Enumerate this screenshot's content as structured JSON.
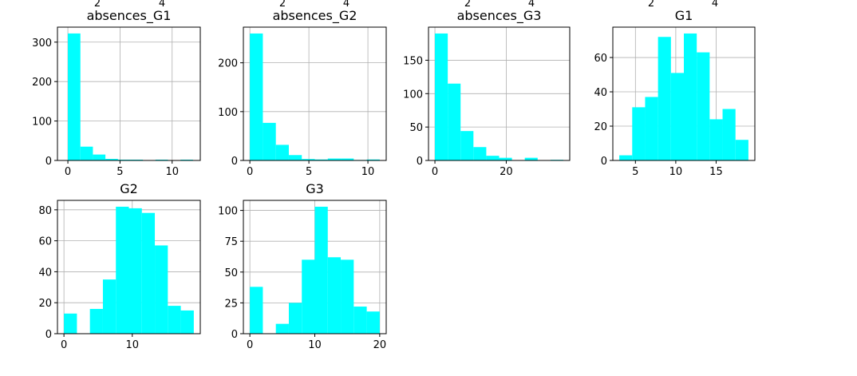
{
  "colors": {
    "bar": "#00ffff",
    "grid": "#b0b0b0",
    "axis": "#000000"
  },
  "top_clipped_ticks": [
    "2",
    "4",
    "2",
    "4",
    "2",
    "4",
    "2",
    "4"
  ],
  "chart_data": [
    {
      "id": "absences_G1",
      "type": "bar",
      "title": "absences_G1",
      "bins": [
        [
          0,
          1.2,
          322
        ],
        [
          1.2,
          2.4,
          35
        ],
        [
          2.4,
          3.6,
          15
        ],
        [
          3.6,
          4.8,
          4
        ],
        [
          4.8,
          6,
          2
        ],
        [
          6,
          7.2,
          2
        ],
        [
          7.2,
          8.4,
          0
        ],
        [
          8.4,
          9.6,
          2
        ],
        [
          9.6,
          10.8,
          1
        ],
        [
          10.8,
          12,
          2
        ]
      ],
      "xlim": [
        -1,
        12.7
      ],
      "ylim": [
        0,
        338
      ],
      "xticks": [
        0,
        5,
        10
      ],
      "yticks": [
        0,
        100,
        200,
        300
      ],
      "grid": true
    },
    {
      "id": "absences_G2",
      "type": "bar",
      "title": "absences_G2",
      "bins": [
        [
          0,
          1.1,
          260
        ],
        [
          1.1,
          2.2,
          77
        ],
        [
          2.2,
          3.3,
          32
        ],
        [
          3.3,
          4.4,
          11
        ],
        [
          4.4,
          5.5,
          3
        ],
        [
          5.5,
          6.6,
          2
        ],
        [
          6.6,
          7.7,
          4
        ],
        [
          7.7,
          8.8,
          4
        ],
        [
          8.8,
          9.9,
          1
        ],
        [
          9.9,
          11,
          2
        ]
      ],
      "xlim": [
        -0.55,
        11.55
      ],
      "ylim": [
        0,
        273
      ],
      "xticks": [
        0,
        5,
        10
      ],
      "yticks": [
        0,
        100,
        200
      ],
      "grid": true
    },
    {
      "id": "absences_G3",
      "type": "bar",
      "title": "absences_G3",
      "bins": [
        [
          0,
          3.6,
          190
        ],
        [
          3.6,
          7.2,
          115
        ],
        [
          7.2,
          10.8,
          44
        ],
        [
          10.8,
          14.4,
          20
        ],
        [
          14.4,
          18,
          7
        ],
        [
          18,
          21.6,
          4
        ],
        [
          21.6,
          25.2,
          0
        ],
        [
          25.2,
          28.8,
          4
        ],
        [
          28.8,
          32.4,
          0
        ],
        [
          32.4,
          36,
          1
        ]
      ],
      "xlim": [
        -1.8,
        37.8
      ],
      "ylim": [
        0,
        199.5
      ],
      "xticks": [
        0,
        20
      ],
      "yticks": [
        0,
        50,
        100,
        150
      ],
      "grid": true
    },
    {
      "id": "G1",
      "type": "bar",
      "title": "G1",
      "bins": [
        [
          3,
          4.6,
          3
        ],
        [
          4.6,
          6.2,
          31
        ],
        [
          6.2,
          7.8,
          37
        ],
        [
          7.8,
          9.4,
          72
        ],
        [
          9.4,
          11,
          51
        ],
        [
          11,
          12.6,
          74
        ],
        [
          12.6,
          14.2,
          63
        ],
        [
          14.2,
          15.8,
          24
        ],
        [
          15.8,
          17.4,
          30
        ],
        [
          17.4,
          19,
          12
        ]
      ],
      "xlim": [
        2.2,
        19.8
      ],
      "ylim": [
        0,
        77.7
      ],
      "xticks": [
        5,
        10,
        15
      ],
      "yticks": [
        0,
        20,
        40,
        60
      ],
      "grid": true
    },
    {
      "id": "G2",
      "type": "bar",
      "title": "G2",
      "bins": [
        [
          0,
          1.9,
          13
        ],
        [
          1.9,
          3.8,
          0
        ],
        [
          3.8,
          5.7,
          16
        ],
        [
          5.7,
          7.6,
          35
        ],
        [
          7.6,
          9.5,
          82
        ],
        [
          9.5,
          11.4,
          81
        ],
        [
          11.4,
          13.3,
          78
        ],
        [
          13.3,
          15.2,
          57
        ],
        [
          15.2,
          17.1,
          18
        ],
        [
          17.1,
          19,
          15
        ]
      ],
      "xlim": [
        -0.95,
        19.95
      ],
      "ylim": [
        0,
        86.1
      ],
      "xticks": [
        0,
        10
      ],
      "yticks": [
        0,
        20,
        40,
        60,
        80
      ],
      "grid": true
    },
    {
      "id": "G3",
      "type": "bar",
      "title": "G3",
      "bins": [
        [
          0,
          2,
          38
        ],
        [
          2,
          4,
          0
        ],
        [
          4,
          6,
          8
        ],
        [
          6,
          8,
          25
        ],
        [
          8,
          10,
          60
        ],
        [
          10,
          12,
          103
        ],
        [
          12,
          14,
          62
        ],
        [
          14,
          16,
          60
        ],
        [
          16,
          18,
          22
        ],
        [
          18,
          20,
          18
        ]
      ],
      "xlim": [
        -1,
        21
      ],
      "ylim": [
        0,
        108.15
      ],
      "xticks": [
        0,
        10,
        20
      ],
      "yticks": [
        0,
        25,
        50,
        75,
        100
      ],
      "grid": true
    }
  ]
}
